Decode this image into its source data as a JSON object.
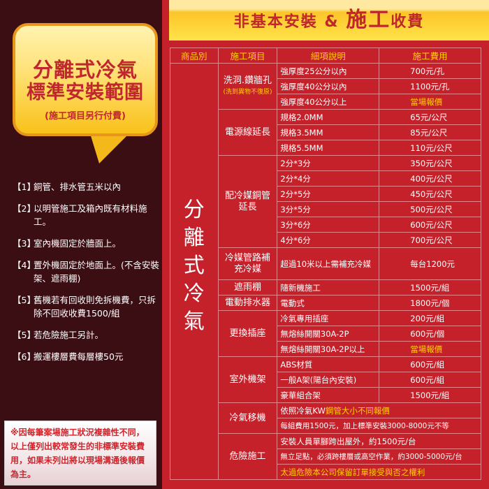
{
  "left": {
    "bubble": {
      "title1": "分離式冷氣",
      "title2": "標準安裝範圍",
      "subtitle": "(施工項目另行付費)"
    },
    "items": [
      {
        "num": "【1】",
        "text": "銅管、排水管五米以內"
      },
      {
        "num": "【2】",
        "text": "以明管施工及箱內既有材料施工。"
      },
      {
        "num": "【3】",
        "text": "室內機固定於牆面上。"
      },
      {
        "num": "【4】",
        "text": "置外機固定於地面上。(不含安裝架、遮雨棚)"
      },
      {
        "num": "【5】",
        "text": "舊機若有回收則免拆機費，只拆除不回收收費1500/組"
      },
      {
        "num": "【5】",
        "text": "若危險施工另計。"
      },
      {
        "num": "【6】",
        "text": "搬運樓層費每層樓50元"
      }
    ],
    "note": "※因每筆案場施工狀況複雜性不同，以上僅列出較常發生的非標準安裝費用，如果未列出將以現場溝通後報價為主。"
  },
  "banner": {
    "part1": "非基本安裝",
    "amp": "&",
    "part2": "施工",
    "part3": "收費"
  },
  "table": {
    "headers": [
      "商品別",
      "施工項目",
      "細項說明",
      "施工費用"
    ],
    "category": "分離式冷氣",
    "groups": [
      {
        "item": "洗洞.鑽牆孔",
        "note": "(洗到異物不復原)",
        "rows": [
          [
            "強厚度25公分以內",
            "700元/孔"
          ],
          [
            "強厚度40公分以內",
            "1100元/孔"
          ],
          [
            "強厚度40公分以上",
            "當場報價"
          ]
        ]
      },
      {
        "item": "電源線延長",
        "rows": [
          [
            "規格2.0MM",
            "65元/公尺"
          ],
          [
            "規格3.5MM",
            "85元/公尺"
          ],
          [
            "規格5.5MM",
            "110元/公尺"
          ]
        ]
      },
      {
        "item": "配冷媒銅管延長",
        "rows": [
          [
            "2分*3分",
            "350元/公尺"
          ],
          [
            "2分*4分",
            "400元/公尺"
          ],
          [
            "2分*5分",
            "450元/公尺"
          ],
          [
            "3分*5分",
            "500元/公尺"
          ],
          [
            "3分*6分",
            "600元/公尺"
          ],
          [
            "4分*6分",
            "700元/公尺"
          ]
        ]
      },
      {
        "item": "冷媒管路補充冷媒",
        "rows": [
          [
            "超過10米以上需補充冷媒",
            "每台1200元"
          ]
        ]
      },
      {
        "item": "遮雨棚",
        "rows": [
          [
            "隨新機施工",
            "1500元/組"
          ]
        ]
      },
      {
        "item": "電動排水器",
        "rows": [
          [
            "電動式",
            "1800元/個"
          ]
        ]
      },
      {
        "item": "更換插座",
        "rows": [
          [
            "冷氣專用插座",
            "200元/組"
          ],
          [
            "無熔絲開關30A-2P",
            "600元/個"
          ],
          [
            "無熔絲開關30A-2P以上",
            "當場報價"
          ]
        ]
      },
      {
        "item": "室外機架",
        "rows": [
          [
            "ABS材質",
            "600元/組"
          ],
          [
            "一般A架(陽台內安裝)",
            "600元/組"
          ],
          [
            "豪華組合架",
            "1500元/組"
          ]
        ]
      },
      {
        "item": "冷氣移機",
        "rows": [
          [
            "依照冷氣KW",
            "鋼管大小不同報價"
          ],
          [
            "每組費用1500元，加上標準安裝3000-8000元不等"
          ]
        ]
      },
      {
        "item": "危險施工",
        "rows": [
          [
            "安裝人員單腳跨出屋外，約1500元/台"
          ],
          [
            "無立足點，必須跨樓層或高空作業，約3000-5000元/台"
          ],
          [
            "太過危險本公司保留訂單接受與否之權利"
          ]
        ]
      }
    ]
  },
  "colors": {
    "panel": "#3b0e14",
    "red": "#c4212b",
    "highlight": "#ffd200"
  }
}
